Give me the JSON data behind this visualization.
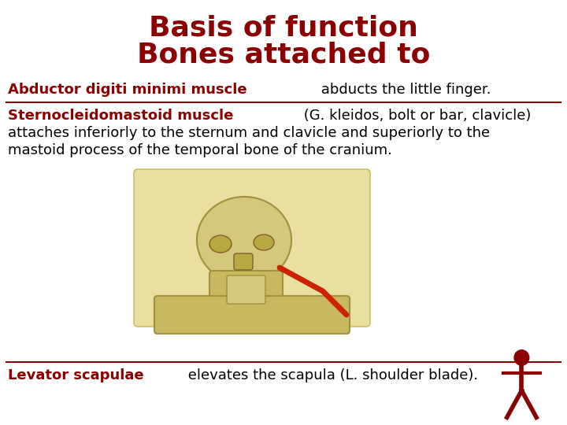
{
  "title_line1": "Basis of function",
  "title_line2": "Bones attached to",
  "title_color": "#8B0000",
  "title_fontsize": 26,
  "bg_color": "#FFFFFF",
  "section1_bold": "Abductor digiti minimi muscle",
  "section1_normal": " abducts the little finger.",
  "section2_bold": "Sternocleidomastoid muscle",
  "section2_normal_line1": " (G. kleidos, bolt or bar, clavicle)",
  "section2_normal_line2": "attaches inferiorly to the sternum and clavicle and superiorly to the",
  "section2_normal_line3": "mastoid process of the temporal bone of the cranium.",
  "section3_bold": "Levator scapulae",
  "section3_normal": " elevates the scapula (L. shoulder blade).",
  "text_color": "#000000",
  "bold_color": "#8B0000",
  "text_fontsize": 13,
  "divider_color": "#8B0000",
  "divider_linewidth": 1.5,
  "skull_color": "#e8dfa0",
  "human_body_color": "#8B0000"
}
